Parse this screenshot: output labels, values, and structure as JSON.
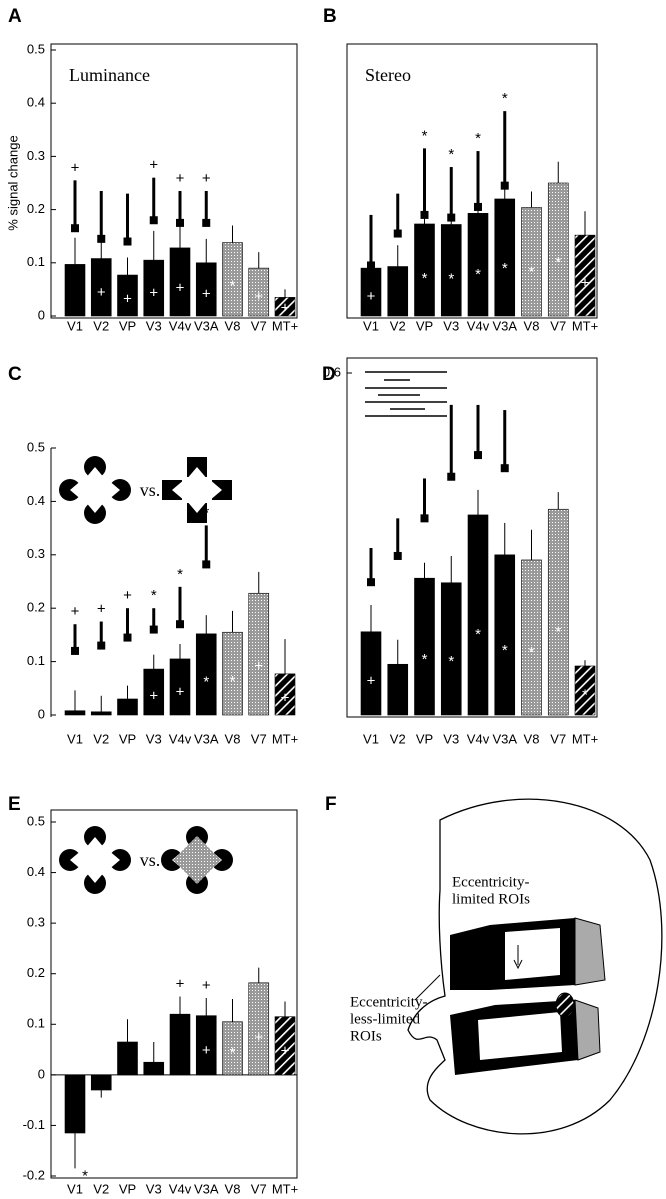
{
  "chart_data": [
    {
      "type": "bar",
      "label": "A",
      "title": "Luminance",
      "ylabel": "% signal change",
      "box": true,
      "categories": [
        "V1",
        "V2",
        "VP",
        "V3",
        "V4v",
        "V3A",
        "V8",
        "V7",
        "MT+"
      ],
      "values": [
        0.097,
        0.108,
        0.077,
        0.105,
        0.128,
        0.1,
        0.138,
        0.09,
        0.035
      ],
      "errors": [
        0.05,
        0.035,
        0.033,
        0.055,
        0.042,
        0.045,
        0.032,
        0.03,
        0.015
      ],
      "markers": [
        0.165,
        0.145,
        0.14,
        0.18,
        0.175,
        0.175,
        null,
        null,
        null
      ],
      "marker_tops": [
        0.255,
        0.235,
        0.23,
        0.26,
        0.235,
        0.235,
        null,
        null,
        null
      ],
      "symbols": [
        "+",
        null,
        null,
        "+",
        "+",
        "+",
        null,
        null,
        null
      ],
      "bar_symbols": [
        null,
        "+",
        "+",
        "+",
        "+",
        "+",
        "*",
        "+",
        "+"
      ],
      "fills": [
        "solid",
        "solid",
        "solid",
        "solid",
        "solid",
        "solid",
        "stipple",
        "stipple",
        "hatch"
      ],
      "ylim": [
        0,
        0.5
      ],
      "yticks": [
        0,
        0.1,
        0.2,
        0.3,
        0.4,
        0.5
      ]
    },
    {
      "type": "bar",
      "label": "B",
      "title": "Stereo",
      "box": true,
      "categories": [
        "V1",
        "V2",
        "VP",
        "V3",
        "V4v",
        "V3A",
        "V8",
        "V7",
        "MT+"
      ],
      "values": [
        0.09,
        0.093,
        0.173,
        0.172,
        0.193,
        0.22,
        0.204,
        0.25,
        0.152
      ],
      "errors": [
        0.05,
        0.04,
        0.04,
        0.03,
        0.04,
        0.05,
        0.03,
        0.04,
        0.045
      ],
      "markers": [
        0.095,
        0.155,
        0.19,
        0.185,
        0.205,
        0.245,
        null,
        null,
        null
      ],
      "marker_tops": [
        0.19,
        0.23,
        0.315,
        0.28,
        0.31,
        0.385,
        null,
        null,
        null
      ],
      "symbols": [
        null,
        null,
        "*",
        "*",
        "*",
        "*",
        null,
        null,
        null
      ],
      "bar_symbols": [
        "+",
        null,
        "*",
        "*",
        "*",
        "*",
        "*",
        "*",
        "+"
      ],
      "fills": [
        "solid",
        "solid",
        "solid",
        "solid",
        "solid",
        "solid",
        "stipple",
        "stipple",
        "hatch"
      ],
      "ylim": [
        0,
        0.5
      ]
    },
    {
      "type": "bar",
      "label": "C",
      "box": false,
      "categories": [
        "V1",
        "V2",
        "VP",
        "V3",
        "V4v",
        "V3A",
        "V8",
        "V7",
        "MT+"
      ],
      "values": [
        0.008,
        0.006,
        0.03,
        0.086,
        0.105,
        0.152,
        0.155,
        0.228,
        0.077
      ],
      "errors": [
        0.038,
        0.03,
        0.025,
        0.027,
        0.028,
        0.035,
        0.04,
        0.04,
        0.065
      ],
      "markers": [
        0.12,
        0.13,
        0.145,
        0.16,
        0.17,
        0.282,
        null,
        null,
        null
      ],
      "marker_tops": [
        0.17,
        0.175,
        0.2,
        0.2,
        0.24,
        0.355,
        null,
        null,
        null
      ],
      "symbols": [
        "+",
        "+",
        "+",
        "*",
        "*",
        "*",
        null,
        null,
        null
      ],
      "bar_symbols": [
        null,
        null,
        null,
        "+",
        "+",
        "*",
        "*",
        "+",
        "+"
      ],
      "fills": [
        "solid",
        "solid",
        "solid",
        "solid",
        "solid",
        "solid",
        "stipple",
        "stipple",
        "hatch"
      ],
      "annotation": "vs.",
      "ylim": [
        0,
        0.5
      ],
      "yticks": [
        0,
        0.1,
        0.2,
        0.3,
        0.4,
        0.5
      ]
    },
    {
      "type": "bar",
      "label": "D",
      "box": true,
      "categories": [
        "V1",
        "V2",
        "VP",
        "V3",
        "V4v",
        "V3A",
        "V8",
        "V7",
        "MT+"
      ],
      "values": [
        0.146,
        0.089,
        0.24,
        0.232,
        0.351,
        0.281,
        0.272,
        0.361,
        0.086
      ],
      "errors": [
        0.047,
        0.043,
        0.027,
        0.047,
        0.044,
        0.056,
        0.053,
        0.03,
        0.01
      ],
      "markers": [
        0.233,
        0.279,
        0.345,
        0.418,
        0.456,
        0.433,
        null,
        null,
        null
      ],
      "marker_tops": [
        0.293,
        0.345,
        0.415,
        0.544,
        0.544,
        0.535,
        null,
        null,
        null
      ],
      "bar_symbols": [
        "+",
        null,
        "*",
        "*",
        "*",
        "*",
        "*",
        "*",
        "*"
      ],
      "fills": [
        "solid",
        "solid",
        "solid",
        "solid",
        "solid",
        "solid",
        "stipple",
        "stipple",
        "hatch"
      ],
      "ylim": [
        0,
        0.6
      ],
      "yticks": [
        0.6
      ]
    },
    {
      "type": "bar",
      "label": "E",
      "box": true,
      "categories": [
        "V1",
        "V2",
        "VP",
        "V3",
        "V4v",
        "V3A",
        "V8",
        "V7",
        "MT+"
      ],
      "values": [
        -0.115,
        -0.03,
        0.065,
        0.025,
        0.12,
        0.117,
        0.105,
        0.182,
        0.115
      ],
      "errors": [
        0.07,
        0.015,
        0.045,
        0.04,
        0.035,
        0.035,
        0.045,
        0.03,
        0.03
      ],
      "symbols": [
        "*",
        null,
        null,
        null,
        "+",
        "+",
        null,
        null,
        null
      ],
      "bar_symbols": [
        null,
        null,
        null,
        null,
        null,
        "+",
        "*",
        "+",
        "+"
      ],
      "fills": [
        "solid",
        "solid",
        "solid",
        "solid",
        "solid",
        "solid",
        "stipple",
        "stipple",
        "hatch"
      ],
      "annotation": "vs.",
      "ylim": [
        -0.2,
        0.5
      ],
      "yticks": [
        -0.2,
        -0.1,
        0,
        0.1,
        0.2,
        0.3,
        0.4,
        0.5
      ]
    }
  ],
  "diagram": {
    "label": "F",
    "upper_label": [
      "Eccentricity-",
      "limited ROIs"
    ],
    "lower_label": [
      "Eccentricity-",
      "less-limited",
      "ROIs"
    ]
  }
}
